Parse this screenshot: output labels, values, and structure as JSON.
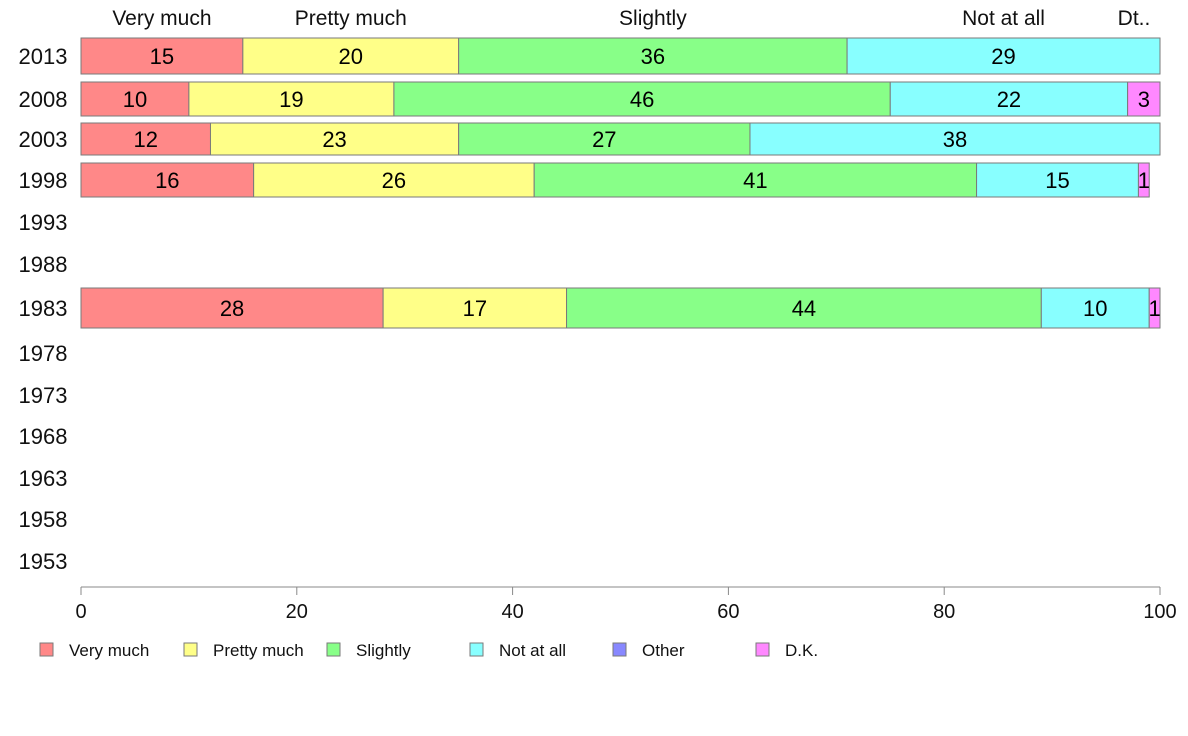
{
  "chart_data": {
    "type": "bar",
    "orientation": "horizontal",
    "stacked": true,
    "xlim": [
      0,
      100
    ],
    "x_ticks": [
      0,
      20,
      40,
      60,
      80,
      100
    ],
    "categories": [
      "2013",
      "2008",
      "2003",
      "1998",
      "1993",
      "1988",
      "1983",
      "1978",
      "1973",
      "1968",
      "1963",
      "1958",
      "1953"
    ],
    "top_labels": [
      "Very much",
      "Pretty much",
      "Slightly",
      "Not at all",
      "Dt.."
    ],
    "series": [
      {
        "name": "Very much",
        "color": "#ff8888",
        "values": [
          15,
          10,
          12,
          16,
          null,
          null,
          28,
          null,
          null,
          null,
          null,
          null,
          null
        ]
      },
      {
        "name": "Pretty much",
        "color": "#ffff88",
        "values": [
          20,
          19,
          23,
          26,
          null,
          null,
          17,
          null,
          null,
          null,
          null,
          null,
          null
        ]
      },
      {
        "name": "Slightly",
        "color": "#88ff88",
        "values": [
          36,
          46,
          27,
          41,
          null,
          null,
          44,
          null,
          null,
          null,
          null,
          null,
          null
        ]
      },
      {
        "name": "Not at all",
        "color": "#88ffff",
        "values": [
          29,
          22,
          38,
          15,
          null,
          null,
          10,
          null,
          null,
          null,
          null,
          null,
          null
        ]
      },
      {
        "name": "Other",
        "color": "#8888ff",
        "values": [
          0,
          0,
          0,
          0,
          null,
          null,
          0,
          null,
          null,
          null,
          null,
          null,
          null
        ]
      },
      {
        "name": "D.K.",
        "color": "#ff88ff",
        "values": [
          0,
          3,
          0,
          1,
          null,
          null,
          1,
          null,
          null,
          null,
          null,
          null,
          null
        ]
      }
    ],
    "legend": [
      "Very much",
      "Pretty much",
      "Slightly",
      "Not at all",
      "Other",
      "D.K."
    ],
    "legend_position": "bottom",
    "grid": false
  }
}
